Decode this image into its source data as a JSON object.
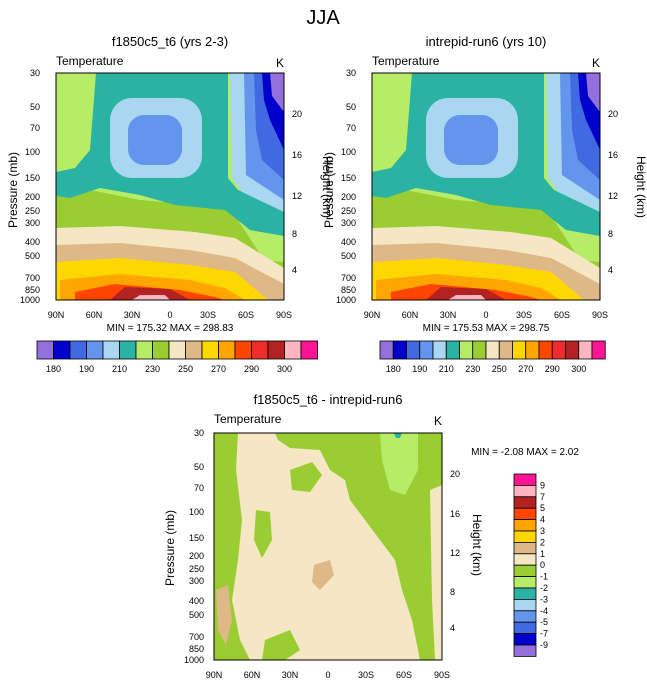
{
  "figure_title": "JJA",
  "chart_data": [
    {
      "type": "contour",
      "title": "f1850c5_t6 (yrs 2-3)",
      "left_label": "Temperature",
      "right_label": "K",
      "xlabel": "",
      "ylabel": "Pressure (mb)",
      "y2label": "Height (km)",
      "x_ticks": [
        "90N",
        "60N",
        "30N",
        "0",
        "30S",
        "60S",
        "90S"
      ],
      "y_ticks": [
        "30",
        "50",
        "70",
        "100",
        "150",
        "200",
        "250",
        "300",
        "400",
        "500",
        "700",
        "850",
        "1000"
      ],
      "y2_ticks": [
        "20",
        "16",
        "12",
        "8",
        "4"
      ],
      "stats": "MIN = 175.32  MAX = 298.83"
    },
    {
      "type": "contour",
      "title": "intrepid-run6 (yrs 10)",
      "left_label": "Temperature",
      "right_label": "K",
      "xlabel": "",
      "ylabel": "Pressure (mb)",
      "y2label": "Height (km)",
      "x_ticks": [
        "90N",
        "60N",
        "30N",
        "0",
        "30S",
        "60S",
        "90S"
      ],
      "y_ticks": [
        "30",
        "50",
        "70",
        "100",
        "150",
        "200",
        "250",
        "300",
        "400",
        "500",
        "700",
        "850",
        "1000"
      ],
      "y2_ticks": [
        "20",
        "16",
        "12",
        "8",
        "4"
      ],
      "stats": "MIN = 175.53  MAX = 298.75"
    },
    {
      "type": "contour",
      "title": "f1850c5_t6 - intrepid-run6",
      "left_label": "Temperature",
      "right_label": "K",
      "xlabel": "",
      "ylabel": "Pressure (mb)",
      "y2label": "Height (km)",
      "x_ticks": [
        "90N",
        "60N",
        "30N",
        "0",
        "30S",
        "60S",
        "90S"
      ],
      "y_ticks": [
        "30",
        "50",
        "70",
        "100",
        "150",
        "200",
        "250",
        "300",
        "400",
        "500",
        "700",
        "850",
        "1000"
      ],
      "y2_ticks": [
        "20",
        "16",
        "12",
        "8",
        "4"
      ],
      "stats": "MIN = -2.08  MAX =  2.02"
    }
  ],
  "colorbar_top": {
    "labels": [
      "180",
      "190",
      "210",
      "230",
      "250",
      "270",
      "290",
      "300"
    ],
    "colors": [
      "#9370db",
      "#0000cd",
      "#4169e1",
      "#6495ed",
      "#a9d6f0",
      "#2ab3a3",
      "#b6ec68",
      "#9acd32",
      "#f5e6c4",
      "#deb887",
      "#ffd700",
      "#ffa500",
      "#ff4500",
      "#ee2c2c",
      "#b22222",
      "#ffb6c1",
      "#ff1493"
    ]
  },
  "colorbar_diff": {
    "labels": [
      "9",
      "7",
      "5",
      "4",
      "3",
      "2",
      "1",
      "0",
      "-1",
      "-2",
      "-3",
      "-4",
      "-5",
      "-7",
      "-9"
    ],
    "colors": [
      "#ff1493",
      "#ffb6c1",
      "#b22222",
      "#ff4500",
      "#ffa500",
      "#ffd700",
      "#deb887",
      "#f5e6c4",
      "#9acd32",
      "#b6ec68",
      "#2ab3a3",
      "#a9d6f0",
      "#6495ed",
      "#4169e1",
      "#0000cd",
      "#9370db"
    ]
  }
}
